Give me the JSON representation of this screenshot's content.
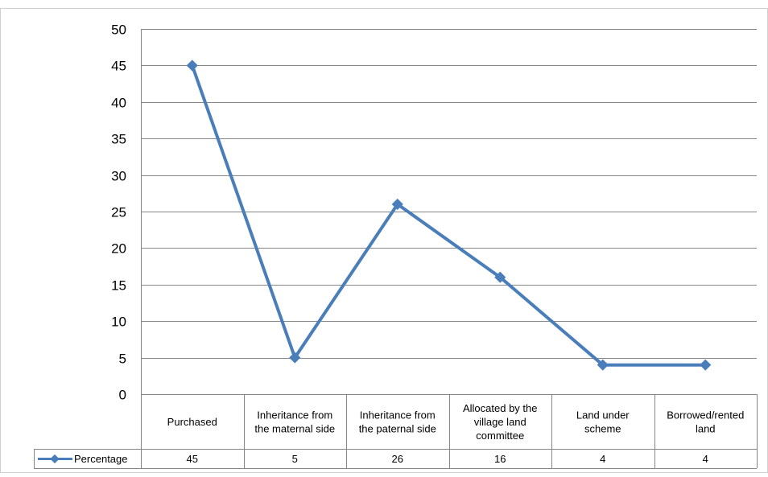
{
  "chart_data": {
    "type": "line",
    "categories": [
      [
        "Purchased"
      ],
      [
        "Inheritance from",
        "the maternal side"
      ],
      [
        "Inheritance from",
        "the paternal side"
      ],
      [
        "Allocated by the",
        "village land",
        "committee"
      ],
      [
        "Land under",
        "scheme"
      ],
      [
        "Borrowed/rented",
        "land"
      ]
    ],
    "series": [
      {
        "name": "Percentage",
        "values": [
          45,
          5,
          26,
          16,
          4,
          4
        ]
      }
    ],
    "ylim": [
      0,
      50
    ],
    "yticks": [
      0,
      5,
      10,
      15,
      20,
      25,
      30,
      35,
      40,
      45,
      50
    ],
    "grid": true,
    "legend": "data-table-left",
    "data_table": true,
    "colors": {
      "series": "#4a7ebb",
      "grid": "#868686",
      "border": "#868686"
    }
  }
}
